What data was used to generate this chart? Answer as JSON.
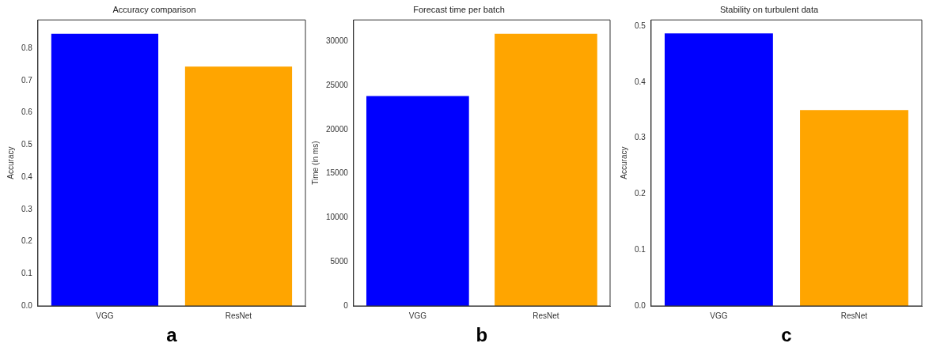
{
  "chart_data": [
    {
      "type": "bar",
      "title": "Accuracy comparison",
      "ylabel": "Accuracy",
      "categories": [
        "VGG",
        "ResNet"
      ],
      "values": [
        0.845,
        0.743
      ],
      "colors": [
        "#0000ff",
        "#ffa500"
      ],
      "ylim": [
        0,
        0.888
      ],
      "yticks": [
        {
          "value": 0,
          "label": "0.0"
        },
        0.1,
        0.2,
        0.3,
        0.4,
        0.5,
        0.6,
        0.7,
        0.8
      ],
      "grid": false,
      "annotations": [
        "a"
      ]
    },
    {
      "type": "bar",
      "title": "Forecast time per batch",
      "ylabel": "Time (in ms)",
      "categories": [
        "VGG",
        "ResNet"
      ],
      "values": [
        23800,
        30850
      ],
      "colors": [
        "#0000ff",
        "#ffa500"
      ],
      "ylim": [
        0,
        32420
      ],
      "yticks": [
        0,
        5000,
        10000,
        15000,
        20000,
        25000,
        30000
      ],
      "grid": false,
      "annotations": [
        "b"
      ]
    },
    {
      "type": "bar",
      "title": "Stability on turbulent data",
      "ylabel": "Accuracy",
      "categories": [
        "VGG",
        "ResNet"
      ],
      "values": [
        0.487,
        0.35
      ],
      "colors": [
        "#0000ff",
        "#ffa500"
      ],
      "ylim": [
        0,
        0.511
      ],
      "yticks": [
        {
          "value": 0,
          "label": "0.0"
        },
        0.1,
        0.2,
        0.3,
        0.4,
        0.5
      ],
      "grid": false,
      "annotations": [
        "c"
      ]
    }
  ]
}
